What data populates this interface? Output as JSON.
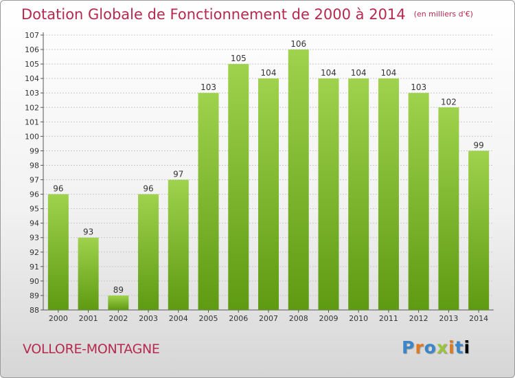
{
  "header": {
    "title": "Dotation Globale de Fonctionnement de 2000 à 2014",
    "unit": "(en milliers d'€)"
  },
  "footer": {
    "commune": "VOLLORE-MONTAGNE",
    "logo": "Proxiti"
  },
  "colors": {
    "bar_top": "#9fd24d",
    "bar_bottom": "#5e9a12",
    "title": "#b5294e",
    "grid": "#c8c8c8"
  },
  "chart_data": {
    "type": "bar",
    "title": "Dotation Globale de Fonctionnement de 2000 à 2014",
    "subtitle": "(en milliers d'€)",
    "xlabel": "",
    "ylabel": "",
    "categories": [
      "2000",
      "2001",
      "2002",
      "2003",
      "2004",
      "2005",
      "2006",
      "2007",
      "2008",
      "2009",
      "2010",
      "2011",
      "2012",
      "2013",
      "2014"
    ],
    "values": [
      96,
      93,
      89,
      96,
      97,
      103,
      105,
      104,
      106,
      104,
      104,
      104,
      103,
      102,
      99
    ],
    "ylim": [
      88,
      107
    ],
    "yticks": [
      88,
      89,
      90,
      91,
      92,
      93,
      94,
      95,
      96,
      97,
      98,
      99,
      100,
      101,
      102,
      103,
      104,
      105,
      106,
      107
    ],
    "grid": true,
    "legend": "none"
  }
}
